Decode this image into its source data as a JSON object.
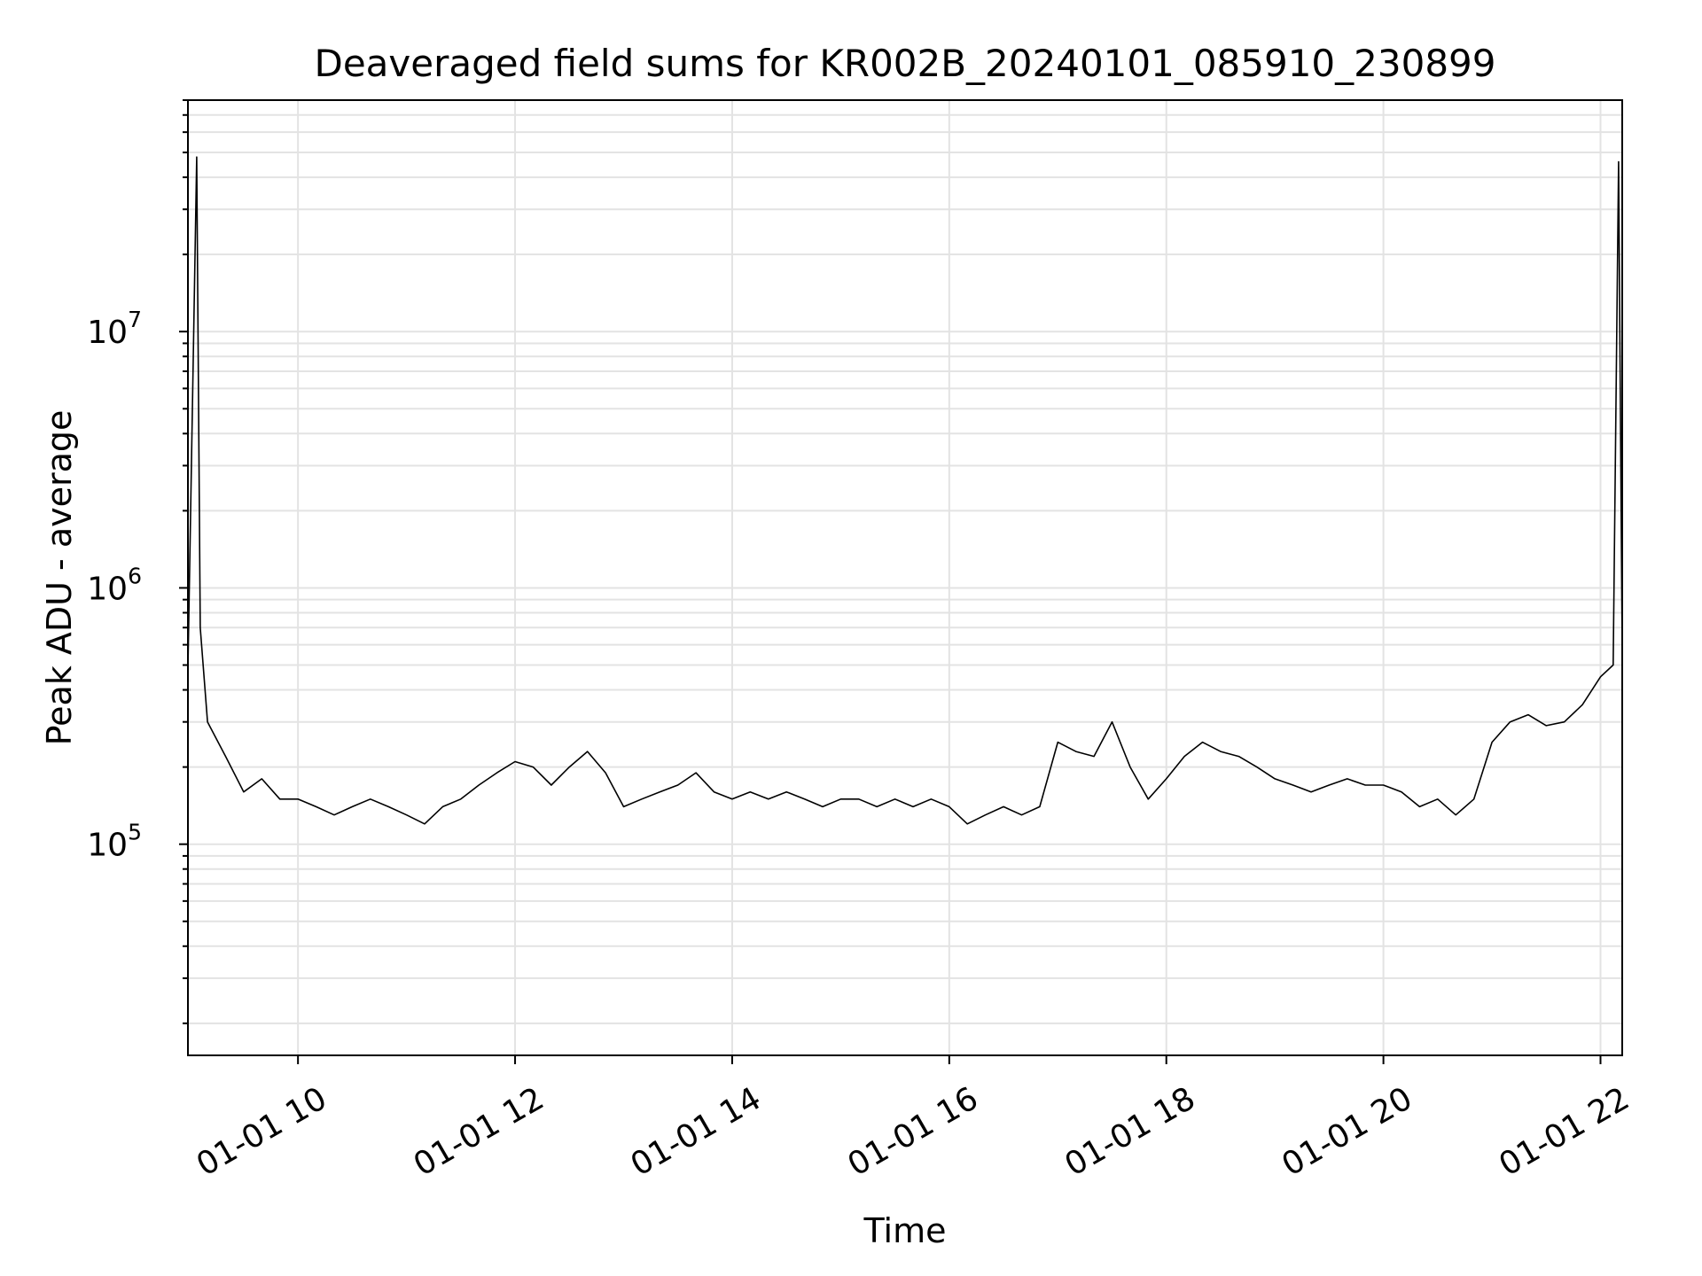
{
  "chart_data": {
    "type": "line",
    "title": "Deaveraged field sums for KR002B_20240101_085910_230899",
    "xlabel": "Time",
    "ylabel": "Peak ADU - average",
    "yscale": "log",
    "grid": true,
    "xlim": [
      "2024-01-01 08:59:10",
      "2024-01-01 22:12:00"
    ],
    "ylim": [
      15000,
      80000000
    ],
    "xticks": [
      {
        "value": "2024-01-01 10:00",
        "label": "01-01 10"
      },
      {
        "value": "2024-01-01 12:00",
        "label": "01-01 12"
      },
      {
        "value": "2024-01-01 14:00",
        "label": "01-01 14"
      },
      {
        "value": "2024-01-01 16:00",
        "label": "01-01 16"
      },
      {
        "value": "2024-01-01 18:00",
        "label": "01-01 18"
      },
      {
        "value": "2024-01-01 20:00",
        "label": "01-01 20"
      },
      {
        "value": "2024-01-01 22:00",
        "label": "01-01 22"
      }
    ],
    "yticks": [
      {
        "value": 100000,
        "base": "10",
        "exp": "5"
      },
      {
        "value": 1000000,
        "base": "10",
        "exp": "6"
      },
      {
        "value": 10000000,
        "base": "10",
        "exp": "7"
      }
    ],
    "series": [
      {
        "color": "#000000",
        "x": [
          "2024-01-01 08:59",
          "2024-01-01 09:04",
          "2024-01-01 09:06",
          "2024-01-01 09:10",
          "2024-01-01 09:20",
          "2024-01-01 09:30",
          "2024-01-01 09:40",
          "2024-01-01 09:50",
          "2024-01-01 10:00",
          "2024-01-01 10:10",
          "2024-01-01 10:20",
          "2024-01-01 10:30",
          "2024-01-01 10:40",
          "2024-01-01 10:50",
          "2024-01-01 11:00",
          "2024-01-01 11:10",
          "2024-01-01 11:20",
          "2024-01-01 11:30",
          "2024-01-01 11:40",
          "2024-01-01 11:50",
          "2024-01-01 12:00",
          "2024-01-01 12:10",
          "2024-01-01 12:20",
          "2024-01-01 12:30",
          "2024-01-01 12:40",
          "2024-01-01 12:50",
          "2024-01-01 13:00",
          "2024-01-01 13:10",
          "2024-01-01 13:20",
          "2024-01-01 13:30",
          "2024-01-01 13:40",
          "2024-01-01 13:50",
          "2024-01-01 14:00",
          "2024-01-01 14:10",
          "2024-01-01 14:20",
          "2024-01-01 14:30",
          "2024-01-01 14:40",
          "2024-01-01 14:50",
          "2024-01-01 15:00",
          "2024-01-01 15:10",
          "2024-01-01 15:20",
          "2024-01-01 15:30",
          "2024-01-01 15:40",
          "2024-01-01 15:50",
          "2024-01-01 16:00",
          "2024-01-01 16:10",
          "2024-01-01 16:20",
          "2024-01-01 16:30",
          "2024-01-01 16:40",
          "2024-01-01 16:50",
          "2024-01-01 17:00",
          "2024-01-01 17:10",
          "2024-01-01 17:20",
          "2024-01-01 17:30",
          "2024-01-01 17:40",
          "2024-01-01 17:50",
          "2024-01-01 18:00",
          "2024-01-01 18:10",
          "2024-01-01 18:20",
          "2024-01-01 18:30",
          "2024-01-01 18:40",
          "2024-01-01 18:50",
          "2024-01-01 19:00",
          "2024-01-01 19:10",
          "2024-01-01 19:20",
          "2024-01-01 19:30",
          "2024-01-01 19:40",
          "2024-01-01 19:50",
          "2024-01-01 20:00",
          "2024-01-01 20:10",
          "2024-01-01 20:20",
          "2024-01-01 20:30",
          "2024-01-01 20:40",
          "2024-01-01 20:50",
          "2024-01-01 21:00",
          "2024-01-01 21:10",
          "2024-01-01 21:20",
          "2024-01-01 21:30",
          "2024-01-01 21:40",
          "2024-01-01 21:50",
          "2024-01-01 22:00",
          "2024-01-01 22:07",
          "2024-01-01 22:10",
          "2024-01-01 22:12"
        ],
        "y": [
          420000,
          48000000,
          700000,
          300000,
          220000,
          160000,
          180000,
          150000,
          150000,
          140000,
          130000,
          140000,
          150000,
          140000,
          130000,
          120000,
          140000,
          150000,
          170000,
          190000,
          210000,
          200000,
          170000,
          200000,
          230000,
          190000,
          140000,
          150000,
          160000,
          170000,
          190000,
          160000,
          150000,
          160000,
          150000,
          160000,
          150000,
          140000,
          150000,
          150000,
          140000,
          150000,
          140000,
          150000,
          140000,
          120000,
          130000,
          140000,
          130000,
          140000,
          250000,
          230000,
          220000,
          300000,
          200000,
          150000,
          180000,
          220000,
          250000,
          230000,
          220000,
          200000,
          180000,
          170000,
          160000,
          170000,
          180000,
          170000,
          170000,
          160000,
          140000,
          150000,
          130000,
          150000,
          250000,
          300000,
          320000,
          290000,
          300000,
          350000,
          450000,
          500000,
          46000000,
          550000
        ]
      }
    ]
  }
}
